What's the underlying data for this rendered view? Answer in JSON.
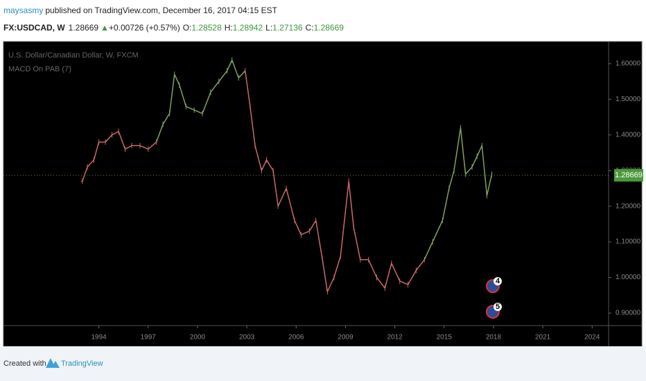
{
  "header": {
    "author": "maysasmy",
    "published": "published on TradingView.com, December 16, 2017 04:15 EST",
    "symbol": "FX:USDCAD, W",
    "price": "1.28669",
    "change": "+0.00726 (+0.57%)",
    "open_label": "O:",
    "open": "1.28528",
    "high_label": "H:",
    "high": "1.28942",
    "low_label": "L:",
    "low": "1.27136",
    "close_label": "C:",
    "close": "1.28669"
  },
  "chart_data": {
    "type": "line",
    "title": "U.S. Dollar/Canadian Dollar, W, FXCM",
    "subtitle": "MACD On PAB (7)",
    "x": [
      1993.0,
      1993.3,
      1993.7,
      1994.0,
      1994.4,
      1994.8,
      1995.2,
      1995.6,
      1996.0,
      1996.5,
      1997.0,
      1997.5,
      1997.9,
      1998.3,
      1998.6,
      1998.9,
      1999.3,
      1999.8,
      2000.3,
      2000.8,
      2001.3,
      2001.8,
      2002.1,
      2002.5,
      2002.9,
      2003.2,
      2003.5,
      2003.9,
      2004.2,
      2004.6,
      2004.9,
      2005.4,
      2005.9,
      2006.3,
      2006.8,
      2007.2,
      2007.6,
      2007.9,
      2008.3,
      2008.7,
      2009.2,
      2009.5,
      2009.9,
      2010.4,
      2010.9,
      2011.4,
      2011.8,
      2012.3,
      2012.8,
      2013.3,
      2013.8,
      2014.3,
      2014.9,
      2015.3,
      2015.6,
      2016.0,
      2016.3,
      2016.7,
      2017.0,
      2017.3,
      2017.6,
      2017.9
    ],
    "values": [
      1.27,
      1.31,
      1.33,
      1.38,
      1.38,
      1.4,
      1.41,
      1.36,
      1.37,
      1.37,
      1.36,
      1.38,
      1.43,
      1.46,
      1.57,
      1.54,
      1.48,
      1.47,
      1.46,
      1.52,
      1.55,
      1.58,
      1.61,
      1.56,
      1.58,
      1.48,
      1.37,
      1.3,
      1.33,
      1.3,
      1.2,
      1.25,
      1.16,
      1.12,
      1.13,
      1.16,
      1.05,
      0.96,
      1.0,
      1.06,
      1.27,
      1.14,
      1.05,
      1.05,
      1.0,
      0.97,
      1.04,
      0.99,
      0.98,
      1.02,
      1.05,
      1.1,
      1.16,
      1.25,
      1.3,
      1.42,
      1.29,
      1.31,
      1.34,
      1.37,
      1.23,
      1.29
    ],
    "colors": [
      "#c86a6a",
      "#c86a6a",
      "#c86a6a",
      "#c86a6a",
      "#c86a6a",
      "#c86a6a",
      "#c86a6a",
      "#c86a6a",
      "#c86a6a",
      "#c86a6a",
      "#c86a6a",
      "#c86a6a",
      "#7fa55a",
      "#7fa55a",
      "#7fa55a",
      "#7fa55a",
      "#7fa55a",
      "#7fa55a",
      "#7fa55a",
      "#7fa55a",
      "#7fa55a",
      "#7fa55a",
      "#7fa55a",
      "#7fa55a",
      "#7fa55a",
      "#c86a6a",
      "#c86a6a",
      "#c86a6a",
      "#c86a6a",
      "#c86a6a",
      "#c86a6a",
      "#c86a6a",
      "#c86a6a",
      "#c86a6a",
      "#c86a6a",
      "#c86a6a",
      "#c86a6a",
      "#c86a6a",
      "#c86a6a",
      "#c86a6a",
      "#c86a6a",
      "#c86a6a",
      "#c86a6a",
      "#c86a6a",
      "#c86a6a",
      "#c86a6a",
      "#c86a6a",
      "#c86a6a",
      "#c86a6a",
      "#c86a6a",
      "#c86a6a",
      "#7fa55a",
      "#7fa55a",
      "#7fa55a",
      "#7fa55a",
      "#7fa55a",
      "#7fa55a",
      "#7fa55a",
      "#7fa55a",
      "#7fa55a",
      "#7fa55a",
      "#7fa55a"
    ],
    "last_price": 1.28669,
    "last_price_color": "#4b9a3a",
    "xlim": [
      1988.2,
      2025.0
    ],
    "xticks": [
      1994,
      1997,
      2000,
      2003,
      2006,
      2009,
      2012,
      2015,
      2018,
      2021,
      2024
    ],
    "ylim": [
      0.865,
      1.662
    ],
    "yticks": [
      {
        "value": 0.9,
        "label": "0.90000"
      },
      {
        "value": 1.0,
        "label": "1.00000"
      },
      {
        "value": 1.1,
        "label": "1.10000"
      },
      {
        "value": 1.2,
        "label": "1.20000"
      },
      {
        "value": 1.3,
        "label": "1.30000"
      },
      {
        "value": 1.4,
        "label": "1.40000"
      },
      {
        "value": 1.5,
        "label": "1.50000"
      },
      {
        "value": 1.6,
        "label": "1.60000"
      }
    ],
    "events": [
      "4",
      "5"
    ]
  },
  "footer": {
    "created": "Created with",
    "brand": "TradingView"
  }
}
